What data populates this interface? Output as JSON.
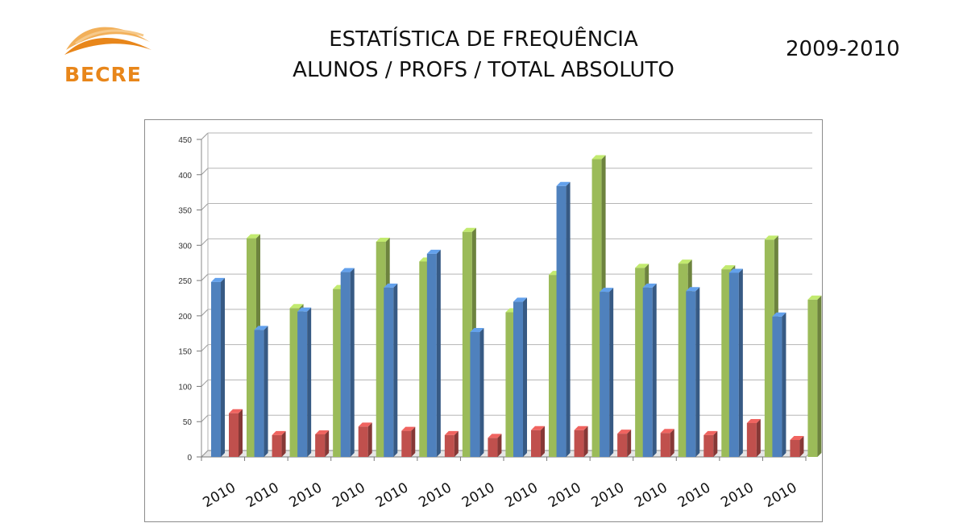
{
  "header": {
    "logo_text": "BECRE",
    "title_line1": "ESTATÍSTICA DE FREQUÊNCIA",
    "title_line2": "ALUNOS / PROFS / TOTAL ABSOLUTO",
    "period": "2009-2010"
  },
  "colors": {
    "alunos": "#4f81bd",
    "profs": "#c0504d",
    "total": "#9bbb59",
    "logo": "#e8861a"
  },
  "chart_data": {
    "type": "bar",
    "title": "",
    "xlabel": "",
    "ylabel": "",
    "ylim": [
      0,
      450
    ],
    "yticks": [
      0,
      50,
      100,
      150,
      200,
      250,
      300,
      350,
      400,
      450
    ],
    "grid": true,
    "style": "3d-clustered-column",
    "categories": [
      "2010",
      "2010",
      "2010",
      "2010",
      "2010",
      "2010",
      "2010",
      "2010",
      "2010",
      "2010",
      "2010",
      "2010",
      "2010",
      "2010"
    ],
    "series": [
      {
        "values": [
          248,
          180,
          206,
          262,
          240,
          288,
          177,
          220,
          384,
          234,
          240,
          235,
          261,
          199
        ]
      },
      {
        "values": [
          62,
          31,
          32,
          43,
          37,
          31,
          27,
          38,
          38,
          33,
          34,
          31,
          48,
          24
        ]
      },
      {
        "values": [
          310,
          211,
          238,
          305,
          277,
          319,
          205,
          258,
          422,
          268,
          274,
          266,
          308,
          223
        ]
      }
    ]
  }
}
